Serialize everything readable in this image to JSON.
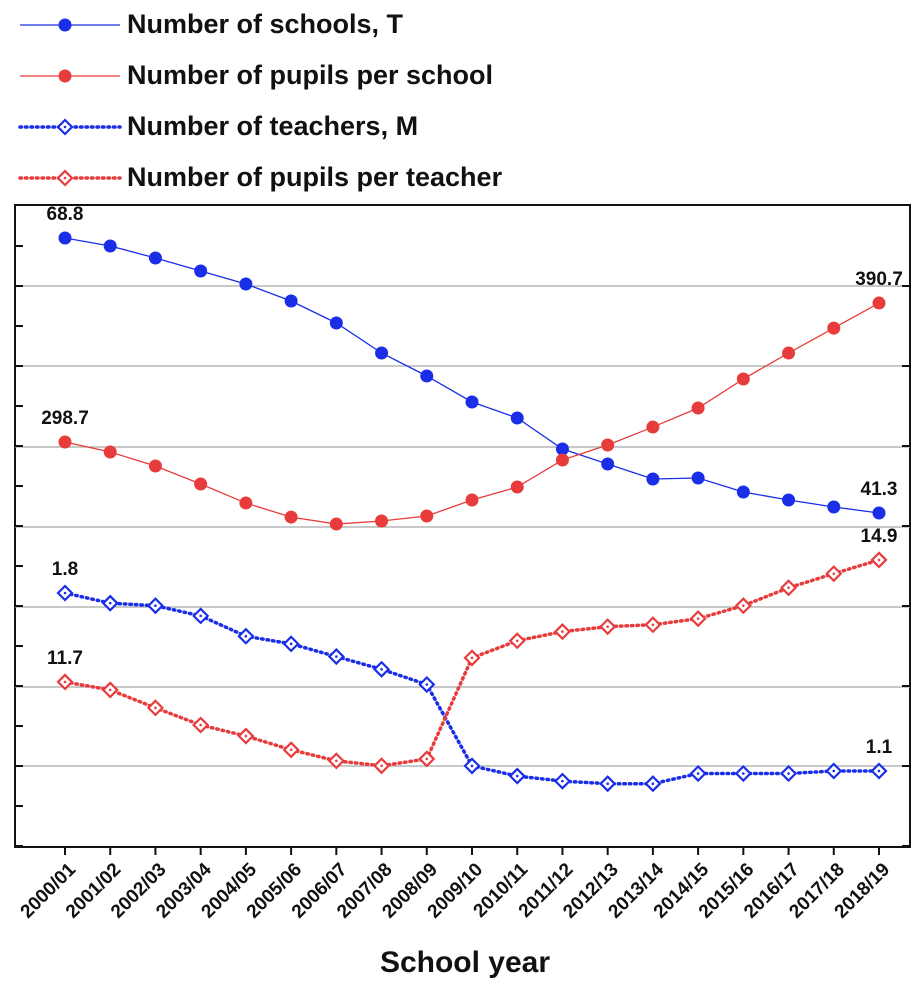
{
  "chart_data": {
    "type": "line",
    "x_label": "School year",
    "categories": [
      "2000/01",
      "2001/02",
      "2002/03",
      "2003/04",
      "2004/05",
      "2005/06",
      "2006/07",
      "2007/08",
      "2008/09",
      "2009/10",
      "2010/11",
      "2011/12",
      "2012/13",
      "2013/14",
      "2014/15",
      "2015/16",
      "2016/17",
      "2017/18",
      "2018/19"
    ],
    "series": [
      {
        "name": "Number of schools, T",
        "color": "#1a2ee8",
        "marker": "circle",
        "line_style": "solid",
        "ylim": [
          7.9,
          72.1
        ],
        "values": [
          68.8,
          68.0,
          66.8,
          65.5,
          64.2,
          62.5,
          60.3,
          57.3,
          55.0,
          52.4,
          50.8,
          47.7,
          46.2,
          44.7,
          44.8,
          43.4,
          42.6,
          41.9,
          41.3
        ],
        "value_labels": [
          "68.8",
          null,
          null,
          null,
          null,
          null,
          null,
          null,
          null,
          null,
          null,
          null,
          null,
          null,
          null,
          null,
          null,
          null,
          "41.3"
        ]
      },
      {
        "name": "Number of pupils per school",
        "color": "#e83c3c",
        "marker": "circle",
        "line_style": "solid",
        "ylim": [
          30.6,
          455.6
        ],
        "values": [
          298.7,
          292.1,
          282.8,
          270.9,
          258.3,
          249.0,
          244.4,
          246.4,
          249.7,
          260.3,
          268.9,
          286.8,
          296.7,
          308.6,
          321.2,
          340.4,
          357.6,
          374.1,
          390.7
        ],
        "value_labels": [
          "298.7",
          null,
          null,
          null,
          null,
          null,
          null,
          null,
          null,
          null,
          null,
          null,
          null,
          null,
          null,
          null,
          null,
          null,
          "390.7"
        ]
      },
      {
        "name": "Number of teachers, M",
        "color": "#1a2ee8",
        "marker": "diamond",
        "line_style": "dotted",
        "ylim": [
          0.801,
          3.326
        ],
        "values": [
          1.8,
          1.76,
          1.75,
          1.71,
          1.63,
          1.6,
          1.55,
          1.5,
          1.44,
          1.12,
          1.08,
          1.06,
          1.05,
          1.05,
          1.09,
          1.09,
          1.09,
          1.1,
          1.1
        ],
        "value_labels": [
          "1.8",
          null,
          null,
          null,
          null,
          null,
          null,
          null,
          null,
          null,
          null,
          null,
          null,
          null,
          null,
          null,
          null,
          null,
          "1.1"
        ]
      },
      {
        "name": "Number of pupils per teacher",
        "color": "#e83c3c",
        "marker": "diamond",
        "line_style": "dotted",
        "ylim": [
          7.37,
          24.21
        ],
        "values": [
          11.7,
          11.49,
          11.02,
          10.57,
          10.28,
          9.92,
          9.63,
          9.5,
          9.68,
          12.33,
          12.78,
          13.02,
          13.15,
          13.2,
          13.36,
          13.7,
          14.17,
          14.54,
          14.9
        ],
        "value_labels": [
          "11.7",
          null,
          null,
          null,
          null,
          null,
          null,
          null,
          null,
          null,
          null,
          null,
          null,
          null,
          null,
          null,
          null,
          null,
          "14.9"
        ]
      }
    ]
  }
}
